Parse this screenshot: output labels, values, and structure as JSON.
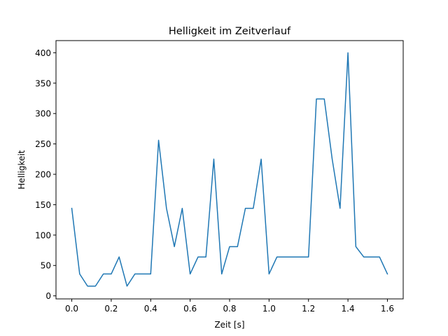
{
  "chart_data": {
    "type": "line",
    "title": "Helligkeit im Zeitverlauf",
    "xlabel": "Zeit [s]",
    "ylabel": "Helligkeit",
    "xlim": [
      -0.08,
      1.68
    ],
    "ylim": [
      -5,
      420
    ],
    "x_ticks": [
      0.0,
      0.2,
      0.4,
      0.6,
      0.8,
      1.0,
      1.2,
      1.4,
      1.6
    ],
    "x_tick_labels": [
      "0.0",
      "0.2",
      "0.4",
      "0.6",
      "0.8",
      "1.0",
      "1.2",
      "1.4",
      "1.6"
    ],
    "y_ticks": [
      0,
      50,
      100,
      150,
      200,
      250,
      300,
      350,
      400
    ],
    "y_tick_labels": [
      "0",
      "50",
      "100",
      "150",
      "200",
      "250",
      "300",
      "350",
      "400"
    ],
    "grid": false,
    "series": [
      {
        "color": "#1f77b4",
        "x": [
          0.0,
          0.04,
          0.08,
          0.12,
          0.16,
          0.2,
          0.24,
          0.28,
          0.32,
          0.36,
          0.4,
          0.44,
          0.48,
          0.52,
          0.56,
          0.6,
          0.64,
          0.68,
          0.72,
          0.76,
          0.8,
          0.84,
          0.88,
          0.92,
          0.96,
          1.0,
          1.04,
          1.08,
          1.12,
          1.16,
          1.2,
          1.24,
          1.28,
          1.32,
          1.36,
          1.4,
          1.44,
          1.48,
          1.52,
          1.56,
          1.6
        ],
        "y": [
          144,
          36,
          16,
          16,
          36,
          36,
          64,
          16,
          36,
          36,
          36,
          256,
          144,
          81,
          144,
          36,
          64,
          64,
          225,
          36,
          81,
          81,
          144,
          144,
          225,
          36,
          64,
          64,
          64,
          64,
          64,
          324,
          324,
          225,
          144,
          400,
          81,
          64,
          64,
          64,
          36
        ]
      }
    ]
  }
}
